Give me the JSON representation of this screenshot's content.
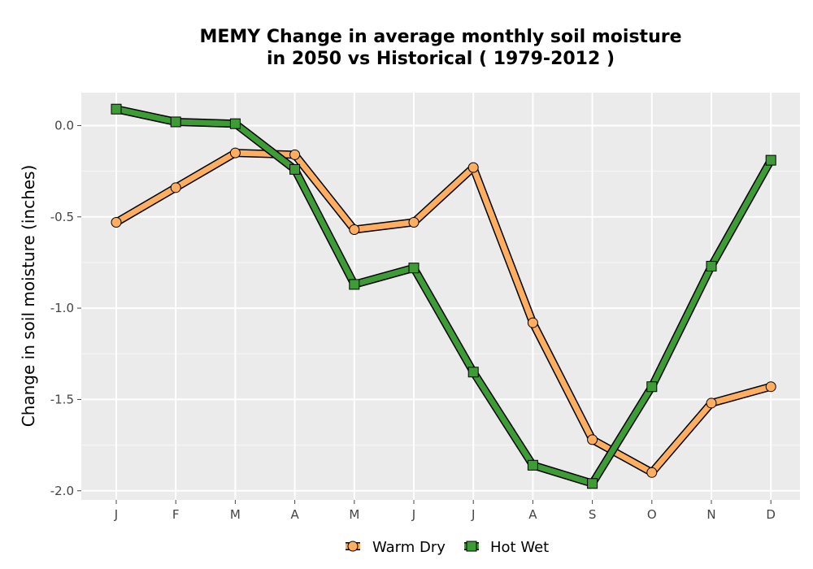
{
  "chart_data": {
    "type": "line",
    "title": "MEMY  Change in average monthly soil moisture\nin 2050 vs Historical ( 1979-2012 )",
    "xlabel": "",
    "ylabel": "Change in soil moisture (inches)",
    "categories": [
      "J",
      "F",
      "M",
      "A",
      "M",
      "J",
      "J",
      "A",
      "S",
      "O",
      "N",
      "D"
    ],
    "ylim": [
      -2.05,
      0.18
    ],
    "yticks": [
      0.0,
      -0.5,
      -1.0,
      -1.5,
      -2.0
    ],
    "ytick_labels": [
      "0.0",
      "-0.5",
      "-1.0",
      "-1.5",
      "-2.0"
    ],
    "grid": true,
    "legend_position": "bottom",
    "series": [
      {
        "name": "Warm Dry",
        "marker": "circle",
        "color": "#fdae61",
        "values": [
          -0.53,
          -0.34,
          -0.15,
          -0.16,
          -0.57,
          -0.53,
          -0.23,
          -1.08,
          -1.72,
          -1.9,
          -1.52,
          -1.43
        ]
      },
      {
        "name": "Hot Wet",
        "marker": "square",
        "color": "#3d9c35",
        "values": [
          0.09,
          0.02,
          0.01,
          -0.24,
          -0.87,
          -0.78,
          -1.35,
          -1.86,
          -1.96,
          -1.43,
          -0.77,
          -0.19
        ]
      }
    ]
  }
}
